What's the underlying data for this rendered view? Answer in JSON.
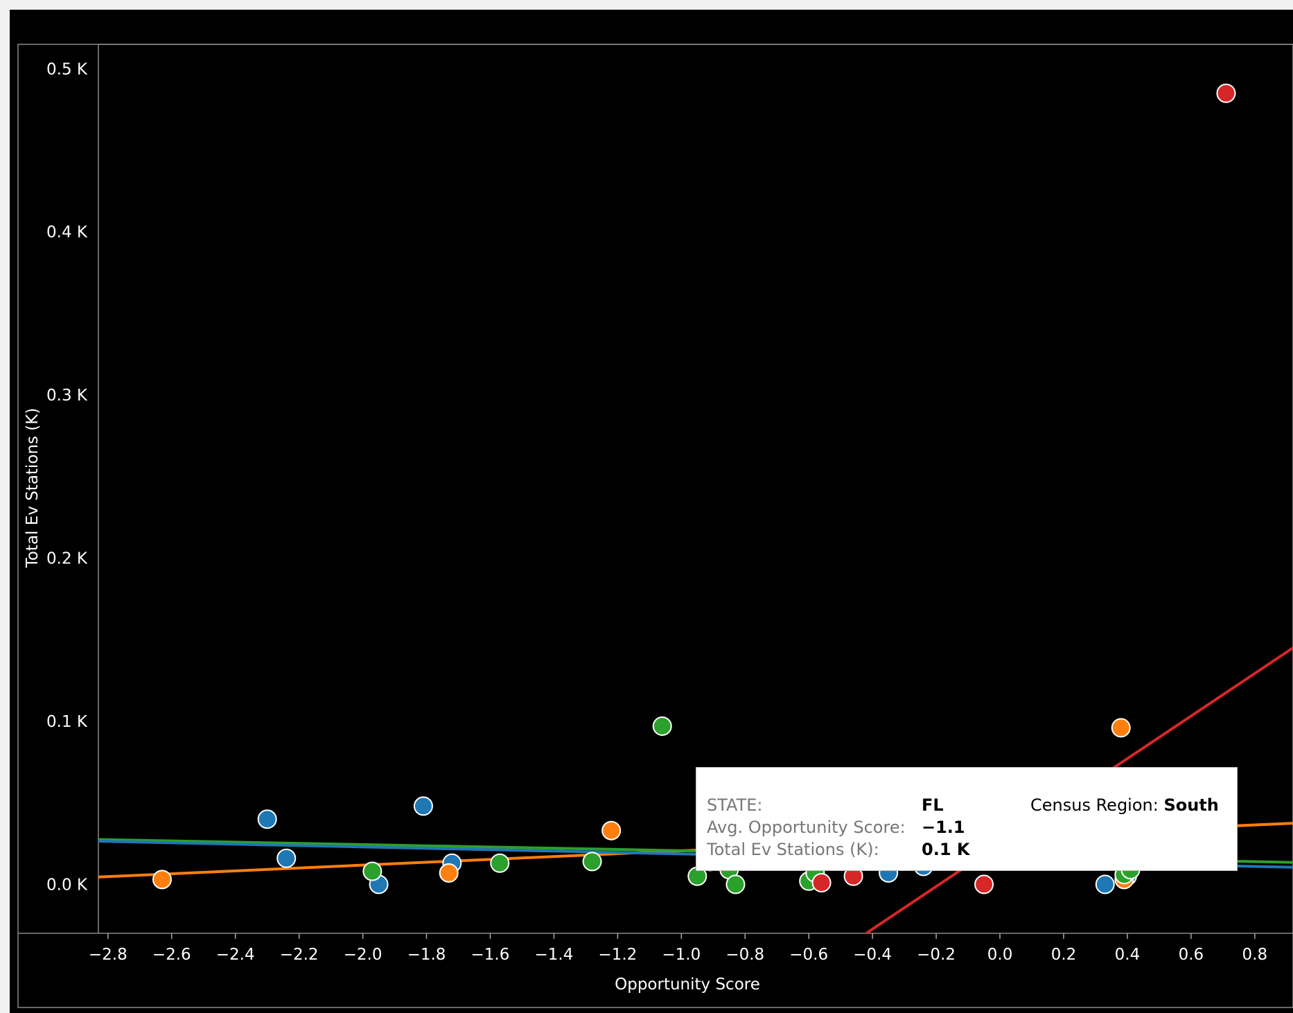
{
  "chart_data": {
    "type": "scatter",
    "xlabel": "Opportunity Score",
    "ylabel": "Total Ev Stations (K)",
    "xlim": [
      -2.83,
      0.92
    ],
    "ylim": [
      -0.03,
      0.515
    ],
    "x_ticks": [
      "−2.8",
      "−2.6",
      "−2.4",
      "−2.2",
      "−2.0",
      "−1.8",
      "−1.6",
      "−1.4",
      "−1.2",
      "−1.0",
      "−0.8",
      "−0.6",
      "−0.4",
      "−0.2",
      "0.0",
      "0.2",
      "0.4",
      "0.6",
      "0.8"
    ],
    "x_tick_values": [
      -2.8,
      -2.6,
      -2.4,
      -2.2,
      -2.0,
      -1.8,
      -1.6,
      -1.4,
      -1.2,
      -1.0,
      -0.8,
      -0.6,
      -0.4,
      -0.2,
      0.0,
      0.2,
      0.4,
      0.6,
      0.8
    ],
    "y_ticks": [
      "0.0 K",
      "0.1 K",
      "0.2 K",
      "0.3 K",
      "0.4 K",
      "0.5 K"
    ],
    "y_tick_values": [
      0.0,
      0.1,
      0.2,
      0.3,
      0.4,
      0.5
    ],
    "grid": false,
    "series": [
      {
        "color": "#1f77b4",
        "points": [
          [
            -2.3,
            0.04
          ],
          [
            -2.24,
            0.016
          ],
          [
            -1.95,
            0.0
          ],
          [
            -1.81,
            0.048
          ],
          [
            -1.72,
            0.013
          ],
          [
            -0.35,
            0.007
          ],
          [
            -0.24,
            0.011
          ],
          [
            0.33,
            0.0
          ],
          [
            0.39,
            0.014
          ],
          [
            0.4,
            0.005
          ],
          [
            0.4,
            0.012
          ]
        ],
        "trendline": [
          [
            -2.83,
            0.0265
          ],
          [
            0.92,
            0.0105
          ]
        ]
      },
      {
        "color": "#ff7f0e",
        "points": [
          [
            -2.63,
            0.003
          ],
          [
            -1.73,
            0.007
          ],
          [
            -1.22,
            0.033
          ],
          [
            0.38,
            0.096
          ],
          [
            0.39,
            0.003
          ],
          [
            0.41,
            0.014
          ]
        ],
        "trendline": [
          [
            -2.83,
            0.0045
          ],
          [
            0.92,
            0.0375
          ]
        ]
      },
      {
        "color": "#2ca02c",
        "points": [
          [
            -1.97,
            0.008
          ],
          [
            -1.57,
            0.013
          ],
          [
            -1.28,
            0.014
          ],
          [
            -1.06,
            0.097
          ],
          [
            -0.95,
            0.005
          ],
          [
            -0.91,
            0.014
          ],
          [
            -0.85,
            0.009
          ],
          [
            -0.83,
            0.0
          ],
          [
            -0.6,
            0.002
          ],
          [
            -0.58,
            0.007
          ],
          [
            0.39,
            0.006
          ],
          [
            0.41,
            0.009
          ]
        ],
        "trendline": [
          [
            -2.83,
            0.0275
          ],
          [
            0.92,
            0.0135
          ]
        ]
      },
      {
        "color": "#d62728",
        "points": [
          [
            -0.56,
            0.001
          ],
          [
            -0.46,
            0.005
          ],
          [
            -0.05,
            0.0
          ],
          [
            0.41,
            0.017
          ],
          [
            0.71,
            0.485
          ]
        ],
        "trendline": [
          [
            -0.42,
            -0.03
          ],
          [
            0.92,
            0.145
          ]
        ]
      }
    ],
    "tooltip": {
      "state_label": "STATE:",
      "state_value": "FL",
      "score_label": "Avg. Opportunity Score:",
      "score_value": "−1.1",
      "stations_label": "Total Ev Stations (K):",
      "stations_value": "0.1 K",
      "region_label": "Census Region:",
      "region_value": "South"
    }
  }
}
